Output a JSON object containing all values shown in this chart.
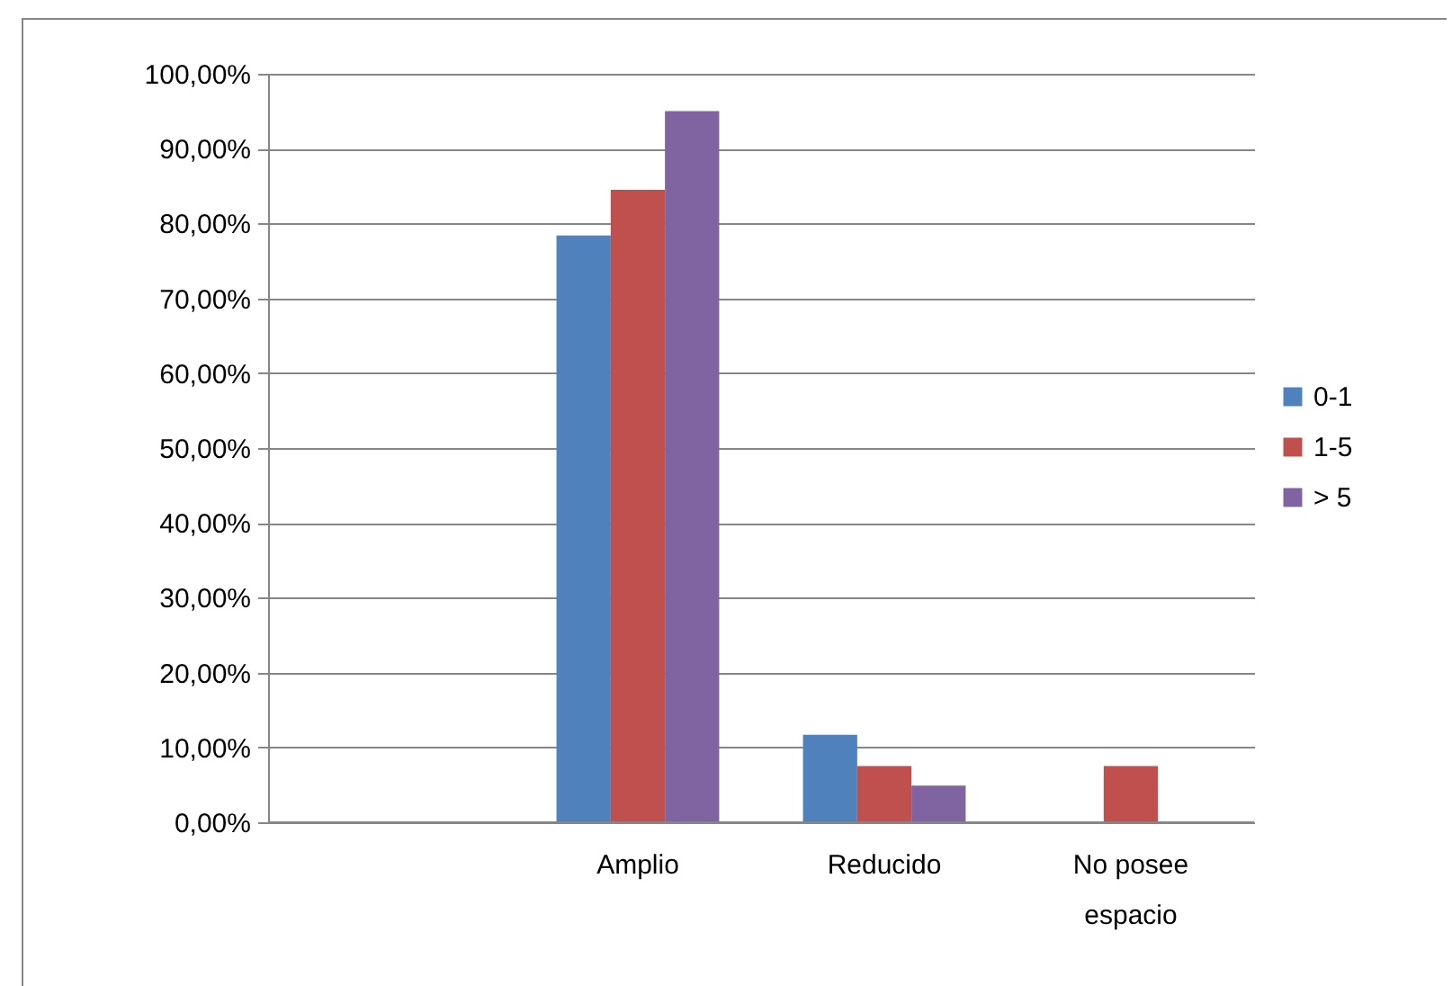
{
  "chart_data": {
    "type": "bar",
    "categories": [
      null,
      "Amplio",
      "Reducido",
      "No posee espacio"
    ],
    "series": [
      {
        "name": "0-1",
        "color": "#4f81bd",
        "values": [
          null,
          78.4,
          11.7,
          null
        ]
      },
      {
        "name": "1-5",
        "color": "#c0504d",
        "values": [
          null,
          84.5,
          7.5,
          7.5
        ]
      },
      {
        "name": "> 5",
        "color": "#8064a2",
        "values": [
          null,
          95.0,
          4.9,
          null
        ]
      }
    ],
    "ylim": [
      0,
      100
    ],
    "yticks": [
      {
        "value": 0,
        "label": "0,00%"
      },
      {
        "value": 10,
        "label": "10,00%"
      },
      {
        "value": 20,
        "label": "20,00%"
      },
      {
        "value": 30,
        "label": "30,00%"
      },
      {
        "value": 40,
        "label": "40,00%"
      },
      {
        "value": 50,
        "label": "50,00%"
      },
      {
        "value": 60,
        "label": "60,00%"
      },
      {
        "value": 70,
        "label": "70,00%"
      },
      {
        "value": 80,
        "label": "80,00%"
      },
      {
        "value": 90,
        "label": "90,00%"
      },
      {
        "value": 100,
        "label": "100,00%"
      }
    ],
    "grid": "y",
    "legend": "right"
  }
}
